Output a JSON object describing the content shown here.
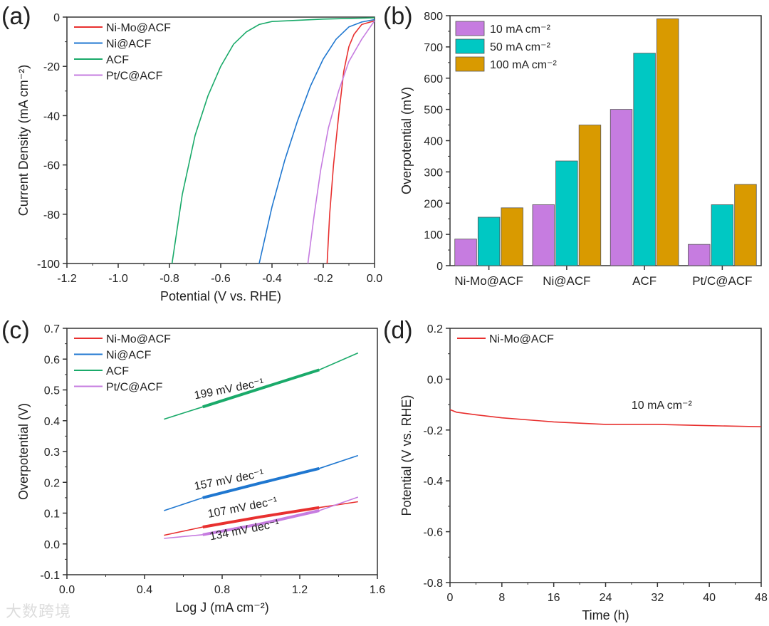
{
  "watermark": "大数跨境",
  "colors": {
    "red": "#e8302f",
    "blue": "#1f77d0",
    "green": "#1aaa6a",
    "violet": "#c67ce0",
    "teal": "#00c8c3",
    "gold": "#d99a00"
  },
  "chart_data": [
    {
      "panel_label": "(a)",
      "type": "line",
      "xlabel": "Potential (V vs. RHE)",
      "ylabel": "Current Density (mA cm⁻²)",
      "xlim": [
        -1.2,
        0.0
      ],
      "ylim": [
        -100,
        0
      ],
      "xticks": [
        "-1.2",
        "-1.0",
        "-0.8",
        "-0.6",
        "-0.4",
        "-0.2",
        "0.0"
      ],
      "yticks": [
        "-100",
        "-80",
        "-60",
        "-40",
        "-20",
        "0"
      ],
      "legend_position": "top-left",
      "series": [
        {
          "name": "Ni-Mo@ACF",
          "color": "#e8302f",
          "x": [
            0,
            -0.05,
            -0.08,
            -0.1,
            -0.12,
            -0.14,
            -0.16,
            -0.175,
            -0.185
          ],
          "y": [
            -1.5,
            -3,
            -7,
            -12,
            -22,
            -40,
            -60,
            -80,
            -100
          ]
        },
        {
          "name": "Ni@ACF",
          "color": "#1f77d0",
          "x": [
            0,
            -0.05,
            -0.1,
            -0.15,
            -0.2,
            -0.25,
            -0.3,
            -0.35,
            -0.4,
            -0.45
          ],
          "y": [
            -1,
            -2,
            -4,
            -9,
            -17,
            -28,
            -42,
            -58,
            -77,
            -100
          ]
        },
        {
          "name": "ACF",
          "color": "#1aaa6a",
          "x": [
            0,
            -0.2,
            -0.4,
            -0.45,
            -0.5,
            -0.55,
            -0.6,
            -0.65,
            -0.7,
            -0.75,
            -0.79
          ],
          "y": [
            -0.3,
            -0.8,
            -1.8,
            -3,
            -6,
            -11,
            -20,
            -32,
            -48,
            -72,
            -100
          ]
        },
        {
          "name": "Pt/C@ACF",
          "color": "#c67ce0",
          "x": [
            0,
            -0.05,
            -0.1,
            -0.14,
            -0.18,
            -0.21,
            -0.235,
            -0.26
          ],
          "y": [
            -1.5,
            -9,
            -18,
            -30,
            -45,
            -62,
            -80,
            -100
          ]
        }
      ]
    },
    {
      "panel_label": "(b)",
      "type": "bar",
      "xlabel": "",
      "ylabel": "Overpotential (mV)",
      "ylim": [
        0,
        800
      ],
      "yticks": [
        "0",
        "100",
        "200",
        "300",
        "400",
        "500",
        "600",
        "700",
        "800"
      ],
      "categories": [
        "Ni-Mo@ACF",
        "Ni@ACF",
        "ACF",
        "Pt/C@ACF"
      ],
      "legend_position": "top-left",
      "series": [
        {
          "name": "10 mA cm⁻²",
          "color": "#c67ce0",
          "values": [
            85,
            195,
            500,
            68
          ]
        },
        {
          "name": "50 mA cm⁻²",
          "color": "#00c8c3",
          "values": [
            155,
            335,
            680,
            195
          ]
        },
        {
          "name": "100 mA cm⁻²",
          "color": "#d99a00",
          "values": [
            185,
            450,
            790,
            260
          ]
        }
      ]
    },
    {
      "panel_label": "(c)",
      "type": "line",
      "xlabel": "Log J (mA cm⁻²)",
      "ylabel": "Overpotential (V)",
      "xlim": [
        0.0,
        1.6
      ],
      "ylim": [
        -0.1,
        0.7
      ],
      "xticks": [
        "0.0",
        "0.4",
        "0.8",
        "1.2",
        "1.6"
      ],
      "yticks": [
        "-0.1",
        "0.0",
        "0.1",
        "0.2",
        "0.3",
        "0.4",
        "0.5",
        "0.6",
        "0.7"
      ],
      "legend_position": "top-left",
      "series": [
        {
          "name": "Ni-Mo@ACF",
          "color": "#e8302f",
          "x": [
            0.5,
            0.7,
            1.0,
            1.3,
            1.5
          ],
          "y": [
            0.028,
            0.055,
            0.088,
            0.118,
            0.137
          ],
          "annotation": "107 mV dec⁻¹"
        },
        {
          "name": "Ni@ACF",
          "color": "#1f77d0",
          "x": [
            0.5,
            0.7,
            1.0,
            1.3,
            1.5
          ],
          "y": [
            0.108,
            0.15,
            0.198,
            0.245,
            0.287
          ],
          "annotation": "157 mV dec⁻¹"
        },
        {
          "name": "ACF",
          "color": "#1aaa6a",
          "x": [
            0.5,
            0.7,
            1.0,
            1.3,
            1.5
          ],
          "y": [
            0.405,
            0.445,
            0.505,
            0.565,
            0.62
          ],
          "annotation": "199 mV dec⁻¹"
        },
        {
          "name": "Pt/C@ACF",
          "color": "#c67ce0",
          "x": [
            0.5,
            0.7,
            1.0,
            1.3,
            1.4,
            1.5
          ],
          "y": [
            0.018,
            0.03,
            0.065,
            0.108,
            0.13,
            0.152
          ],
          "annotation": "134 mV dec⁻¹"
        }
      ]
    },
    {
      "panel_label": "(d)",
      "type": "line",
      "xlabel": "Time (h)",
      "ylabel": "Potential (V vs. RHE)",
      "xlim": [
        0,
        48
      ],
      "ylim": [
        -0.8,
        0.2
      ],
      "xticks": [
        "0",
        "8",
        "16",
        "24",
        "32",
        "40",
        "48"
      ],
      "yticks": [
        "-0.8",
        "-0.6",
        "-0.4",
        "-0.2",
        "0.0",
        "0.2"
      ],
      "annotation": "10 mA cm⁻²",
      "legend_position": "top-left",
      "series": [
        {
          "name": "Ni-Mo@ACF",
          "color": "#e8302f",
          "x": [
            0,
            1,
            4,
            8,
            16,
            24,
            32,
            40,
            48
          ],
          "y": [
            -0.12,
            -0.13,
            -0.14,
            -0.152,
            -0.168,
            -0.178,
            -0.178,
            -0.183,
            -0.187
          ]
        }
      ]
    }
  ]
}
